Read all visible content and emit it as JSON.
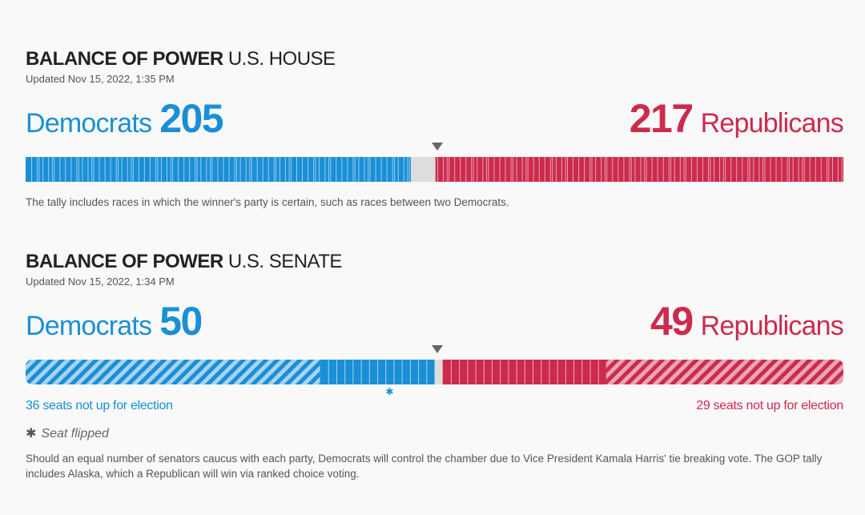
{
  "colors": {
    "democrat": "#1a8fd6",
    "republican": "#cc2b4d",
    "undecided": "#dddddd",
    "hatch": "#a9d3ef",
    "hatch_rep": "#e9a6b5"
  },
  "house": {
    "title_bold": "BALANCE OF POWER",
    "title_rest": "U.S. HOUSE",
    "updated": "Updated Nov 15, 2022, 1:35 PM",
    "dem_label": "Democrats",
    "dem_count": "205",
    "rep_label": "Republicans",
    "rep_count": "217",
    "total_seats": 435,
    "dem_seats": 205,
    "rep_seats": 217,
    "majority_marker_icon": "triangle-down-icon",
    "note": "The tally includes races in which the winner's party is certain, such as races between two Democrats."
  },
  "senate": {
    "title_bold": "BALANCE OF POWER",
    "title_rest": "U.S. SENATE",
    "updated": "Updated Nov 15, 2022, 1:34 PM",
    "dem_label": "Democrats",
    "dem_count": "50",
    "rep_label": "Republicans",
    "rep_count": "49",
    "total_seats": 100,
    "dem_seats": 50,
    "rep_seats": 49,
    "dem_not_up": 36,
    "rep_not_up": 29,
    "dem_not_up_label": "36 seats not up for election",
    "rep_not_up_label": "29 seats not up for election",
    "flipped_seat_index": 44,
    "flip_icon": "asterisk-icon",
    "flip_legend": "Seat flipped",
    "note": "Should an equal number of senators caucus with each party, Democrats will control the chamber due to Vice President Kamala Harris' tie breaking vote. The GOP tally includes Alaska, which a Republican will win via ranked choice voting."
  }
}
